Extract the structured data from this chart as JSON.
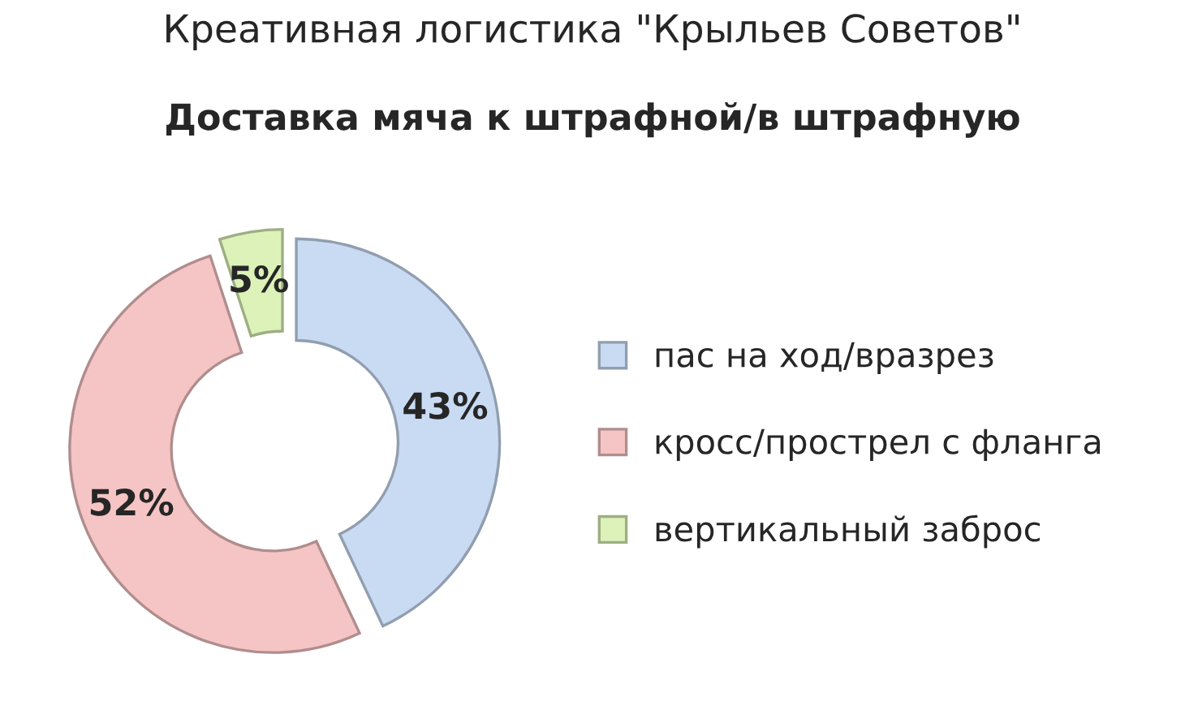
{
  "chart_data": {
    "type": "donut",
    "title": "Креативная логистика \"Крыльев Советов\"",
    "subtitle": "Доставка мяча к штрафной/в штрафную",
    "categories": [
      "пас на ход/вразрез",
      "кросс/прострел с фланга",
      "вертикальный заброс"
    ],
    "values": [
      43,
      52,
      5
    ],
    "colors": [
      "#c9dbf3",
      "#f5c4c4",
      "#dcf2b8"
    ],
    "value_labels": [
      "43%",
      "52%",
      "5%"
    ],
    "legend": "right"
  }
}
